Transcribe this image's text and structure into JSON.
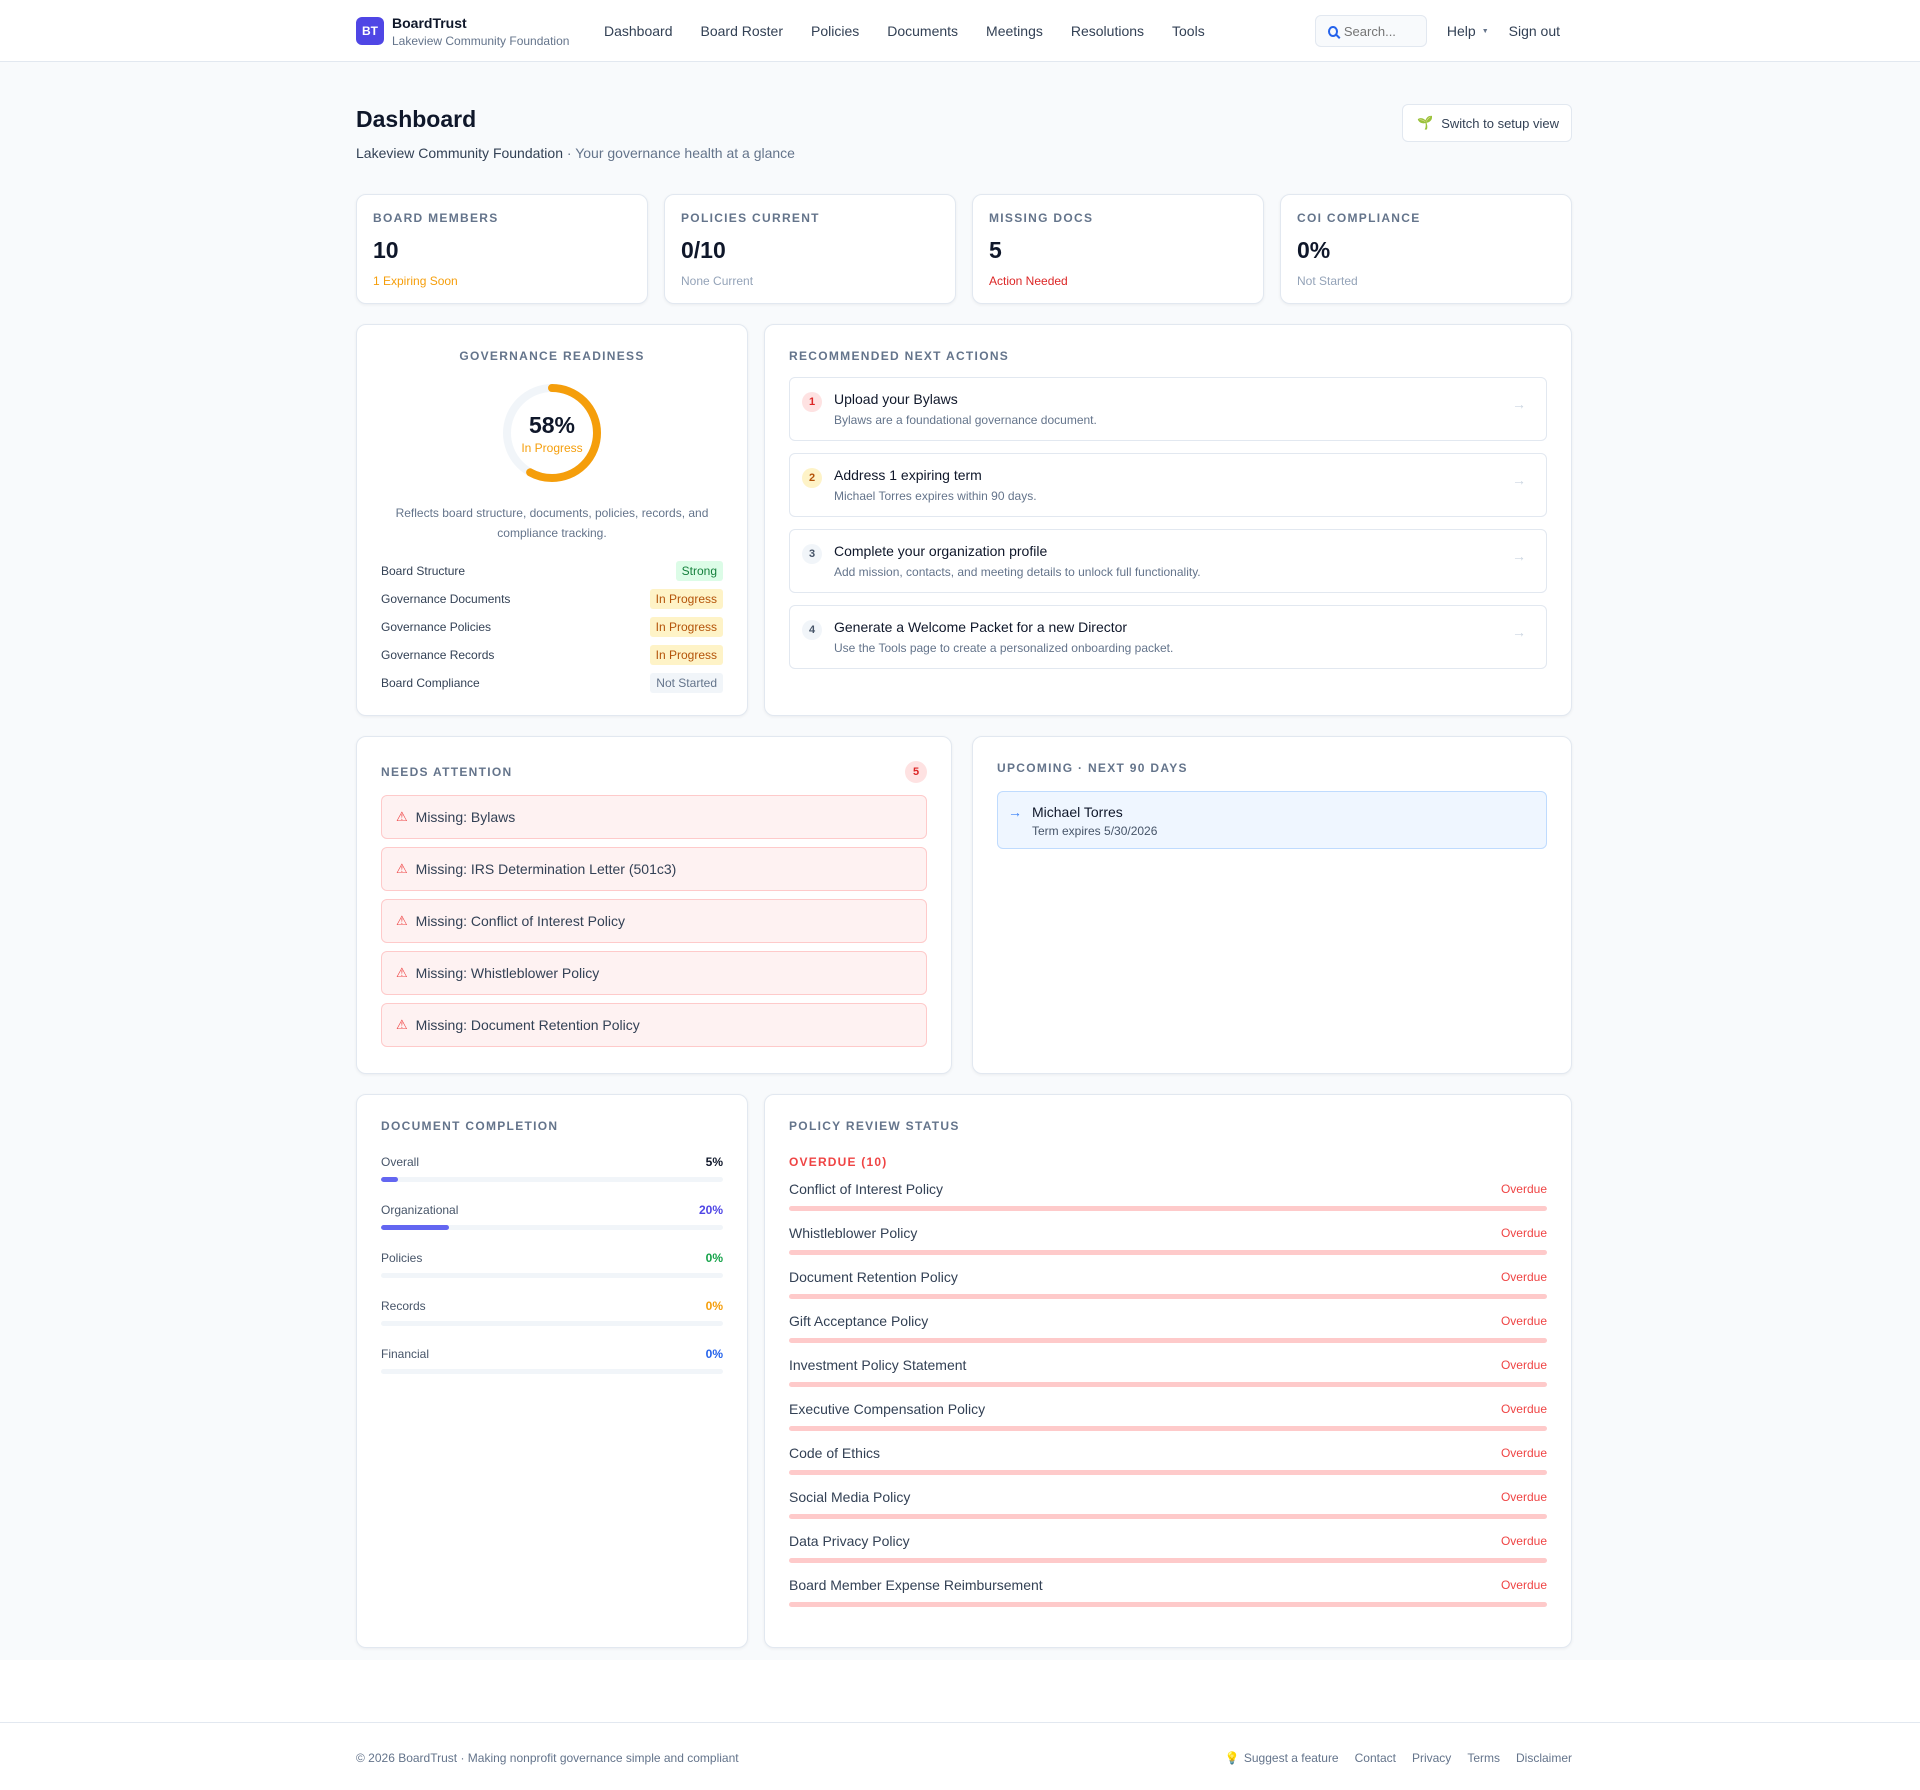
{
  "nav": {
    "logo": "BT",
    "brand": "BoardTrust",
    "org": "Lakeview Community Foundation",
    "links": [
      "Dashboard",
      "Board Roster",
      "Policies",
      "Documents",
      "Meetings",
      "Resolutions",
      "Tools"
    ],
    "search_placeholder": "Search...",
    "help": "Help",
    "signout": "Sign out"
  },
  "header": {
    "title": "Dashboard",
    "org": "Lakeview Community Foundation",
    "tagline": "· Your governance health at a glance",
    "setup_button": "Switch to setup view"
  },
  "stats": [
    {
      "label": "BOARD MEMBERS",
      "value": "10",
      "sub": "1 Expiring Soon",
      "color": "#f59e0b"
    },
    {
      "label": "POLICIES CURRENT",
      "value": "0/10",
      "sub": "None Current",
      "color": "#94a3b8"
    },
    {
      "label": "MISSING DOCS",
      "value": "5",
      "sub": "Action Needed",
      "color": "#dc2626"
    },
    {
      "label": "COI COMPLIANCE",
      "value": "0%",
      "sub": "Not Started",
      "color": "#94a3b8"
    }
  ],
  "readiness": {
    "title": "GOVERNANCE READINESS",
    "percent": 58,
    "percent_label": "58%",
    "status": "In Progress",
    "description": "Reflects board structure, documents, policies, records, and compliance tracking.",
    "items": [
      {
        "label": "Board Structure",
        "status": "Strong",
        "bg": "#dcfce7",
        "fg": "#15803d"
      },
      {
        "label": "Governance Documents",
        "status": "In Progress",
        "bg": "#fef3c7",
        "fg": "#b45309"
      },
      {
        "label": "Governance Policies",
        "status": "In Progress",
        "bg": "#fef3c7",
        "fg": "#b45309"
      },
      {
        "label": "Governance Records",
        "status": "In Progress",
        "bg": "#fef3c7",
        "fg": "#b45309"
      },
      {
        "label": "Board Compliance",
        "status": "Not Started",
        "bg": "#f1f5f9",
        "fg": "#64748b"
      }
    ]
  },
  "actions": {
    "title": "RECOMMENDED NEXT ACTIONS",
    "items": [
      {
        "num": "1",
        "title": "Upload your Bylaws",
        "sub": "Bylaws are a foundational governance document.",
        "bg": "#fee2e2",
        "fg": "#dc2626"
      },
      {
        "num": "2",
        "title": "Address 1 expiring term",
        "sub": "Michael Torres expires within 90 days.",
        "bg": "#fef3c7",
        "fg": "#b45309"
      },
      {
        "num": "3",
        "title": "Complete your organization profile",
        "sub": "Add mission, contacts, and meeting details to unlock full functionality.",
        "bg": "#f1f5f9",
        "fg": "#475569"
      },
      {
        "num": "4",
        "title": "Generate a Welcome Packet for a new Director",
        "sub": "Use the Tools page to create a personalized onboarding packet.",
        "bg": "#f1f5f9",
        "fg": "#475569"
      }
    ]
  },
  "attention": {
    "title": "NEEDS ATTENTION",
    "count": "5",
    "items": [
      "Missing: Bylaws",
      "Missing: IRS Determination Letter (501c3)",
      "Missing: Conflict of Interest Policy",
      "Missing: Whistleblower Policy",
      "Missing: Document Retention Policy"
    ]
  },
  "upcoming": {
    "title": "UPCOMING · NEXT 90 DAYS",
    "items": [
      {
        "name": "Michael Torres",
        "sub": "Term expires 5/30/2026"
      }
    ]
  },
  "documents": {
    "title": "DOCUMENT COMPLETION",
    "items": [
      {
        "label": "Overall",
        "value": 5,
        "pct": "5%",
        "color": "#0f172a",
        "bar": "#6366f1"
      },
      {
        "label": "Organizational",
        "value": 20,
        "pct": "20%",
        "color": "#4f46e5",
        "bar": "#6366f1"
      },
      {
        "label": "Policies",
        "value": 0,
        "pct": "0%",
        "color": "#16a34a",
        "bar": "#22c55e"
      },
      {
        "label": "Records",
        "value": 0,
        "pct": "0%",
        "color": "#f59e0b",
        "bar": "#f59e0b"
      },
      {
        "label": "Financial",
        "value": 0,
        "pct": "0%",
        "color": "#2563eb",
        "bar": "#3b82f6"
      }
    ]
  },
  "policies": {
    "title": "POLICY REVIEW STATUS",
    "overdue_heading": "OVERDUE (10)",
    "status_label": "Overdue",
    "items": [
      "Conflict of Interest Policy",
      "Whistleblower Policy",
      "Document Retention Policy",
      "Gift Acceptance Policy",
      "Investment Policy Statement",
      "Executive Compensation Policy",
      "Code of Ethics",
      "Social Media Policy",
      "Data Privacy Policy",
      "Board Member Expense Reimbursement"
    ]
  },
  "footer": {
    "copyright": "© 2026 BoardTrust · Making nonprofit governance simple and compliant",
    "links": [
      "Suggest a feature",
      "Contact",
      "Privacy",
      "Terms",
      "Disclaimer"
    ]
  }
}
